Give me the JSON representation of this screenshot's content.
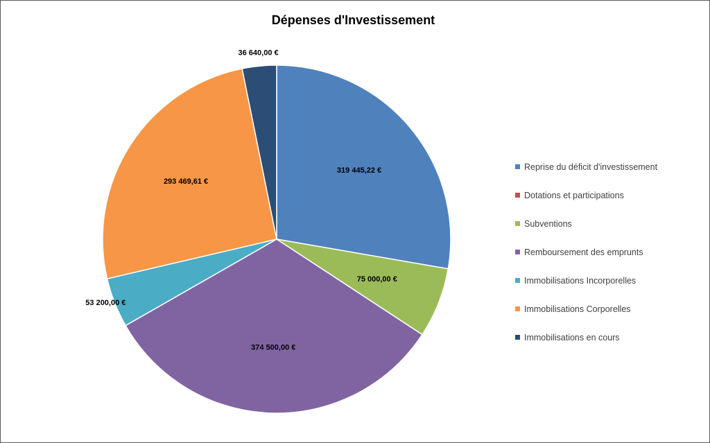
{
  "chart_data": {
    "type": "pie",
    "title": "Dépenses d'Investissement",
    "legend_position": "right",
    "slices": [
      {
        "label": "Reprise du déficit d'investissement",
        "value": 319445.22,
        "display": "319 445,22 €",
        "color": "#4F81BD"
      },
      {
        "label": "Dotations et participations",
        "value": 0,
        "display": "",
        "color": "#C0504D"
      },
      {
        "label": "Subventions",
        "value": 75000.0,
        "display": "75 000,00 €",
        "color": "#9BBB59"
      },
      {
        "label": "Remboursement des emprunts",
        "value": 374500.0,
        "display": "374 500,00 €",
        "color": "#8064A2"
      },
      {
        "label": "Immobilisations Incorporelles",
        "value": 53200.0,
        "display": "53 200,00 €",
        "color": "#4BACC6"
      },
      {
        "label": "Immobilisations Corporelles",
        "value": 293469.61,
        "display": "293 469,61 €",
        "color": "#F79646"
      },
      {
        "label": "Immobilisations en cours",
        "value": 36640.0,
        "display": "36 640,00 €",
        "color": "#2C4D75"
      }
    ]
  }
}
